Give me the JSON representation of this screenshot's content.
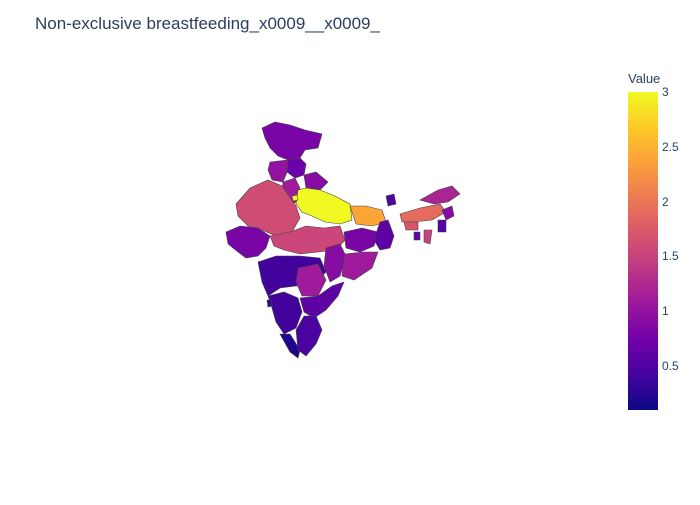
{
  "title": "Non-exclusive breastfeeding_x0009__x0009_",
  "colorbar": {
    "title": "Value",
    "ticks": [
      "3",
      "2.5",
      "2",
      "1.5",
      "1",
      "0.5"
    ],
    "tick_values": [
      3,
      2.5,
      2,
      1.5,
      1,
      0.5
    ],
    "range": [
      0.1,
      3
    ],
    "colorscale": [
      "#0d0887",
      "#46039f",
      "#7201a8",
      "#9c179e",
      "#bd3786",
      "#d8576b",
      "#ed7953",
      "#fb9f3a",
      "#fdca26",
      "#f0f921"
    ]
  },
  "map_data": {
    "type": "choropleth",
    "region": "India",
    "regions": [
      {
        "name": "Jammu & Kashmir",
        "value": 0.8
      },
      {
        "name": "Himachal Pradesh",
        "value": 0.7
      },
      {
        "name": "Punjab",
        "value": 1.0
      },
      {
        "name": "Haryana",
        "value": 1.1
      },
      {
        "name": "Uttarakhand",
        "value": 0.9
      },
      {
        "name": "Uttar Pradesh",
        "value": 3.0
      },
      {
        "name": "Delhi",
        "value": 3.0
      },
      {
        "name": "Rajasthan",
        "value": 1.6
      },
      {
        "name": "Gujarat",
        "value": 0.8
      },
      {
        "name": "Madhya Pradesh",
        "value": 1.55
      },
      {
        "name": "Bihar",
        "value": 2.4
      },
      {
        "name": "Jharkhand",
        "value": 0.8
      },
      {
        "name": "West Bengal",
        "value": 0.6
      },
      {
        "name": "Chhattisgarh",
        "value": 0.9
      },
      {
        "name": "Odisha",
        "value": 1.1
      },
      {
        "name": "Maharashtra",
        "value": 0.4
      },
      {
        "name": "Telangana",
        "value": 1.1
      },
      {
        "name": "Andhra Pradesh",
        "value": 0.6
      },
      {
        "name": "Karnataka",
        "value": 0.4
      },
      {
        "name": "Goa",
        "value": 0.3
      },
      {
        "name": "Kerala",
        "value": 0.2
      },
      {
        "name": "Tamil Nadu",
        "value": 0.45
      },
      {
        "name": "Sikkim",
        "value": 0.5
      },
      {
        "name": "Assam",
        "value": 1.9
      },
      {
        "name": "Arunachal Pradesh",
        "value": 1.2
      },
      {
        "name": "Meghalaya",
        "value": 1.7
      },
      {
        "name": "Nagaland",
        "value": 0.9
      },
      {
        "name": "Manipur",
        "value": 0.5
      },
      {
        "name": "Mizoram",
        "value": 1.5
      },
      {
        "name": "Tripura",
        "value": 0.6
      }
    ]
  }
}
